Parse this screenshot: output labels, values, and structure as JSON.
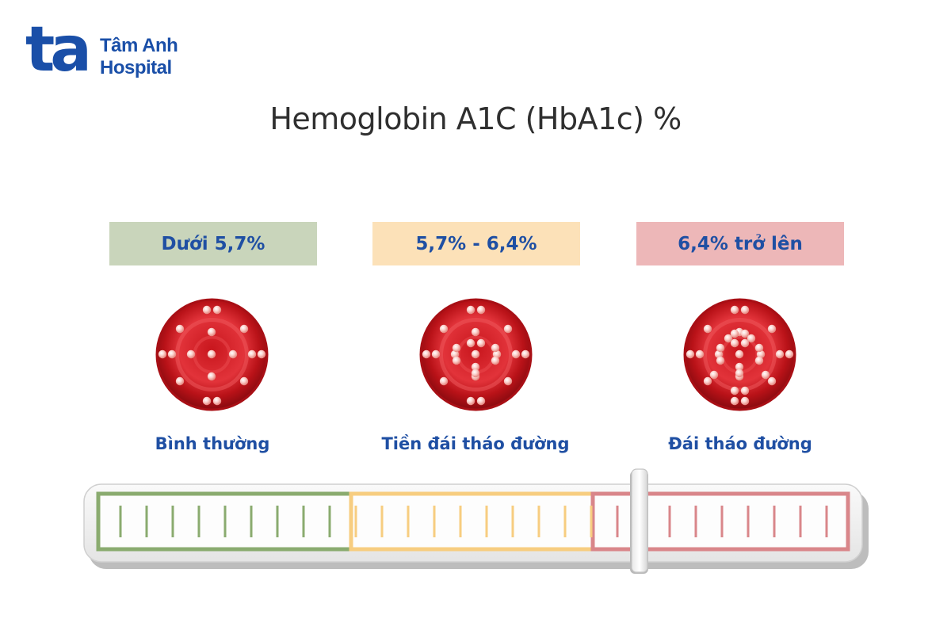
{
  "logo": {
    "mark": "ta",
    "name_line1": "Tâm Anh",
    "name_line2": "Hospital"
  },
  "title": "Hemoglobin A1C (HbA1c) %",
  "categories": [
    {
      "range": "Dưới 5,7%",
      "status": "Bình thường",
      "color": "#c9d5bb"
    },
    {
      "range": "5,7% - 6,4%",
      "status": "Tiền đái tháo đường",
      "color": "#fce1b8"
    },
    {
      "range": "6,4% trở lên",
      "status": "Đái tháo đường",
      "color": "#edb7b8"
    }
  ],
  "scale_colors": {
    "normal": "#8aab6f",
    "prediabetes": "#f7cd80",
    "diabetes": "#d9868a"
  },
  "slider_zone": "diabetes"
}
